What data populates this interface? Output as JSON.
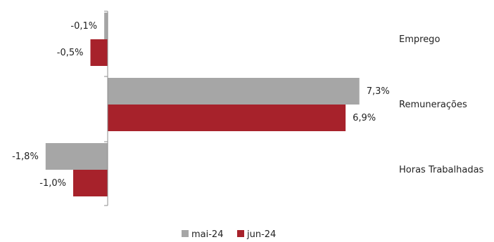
{
  "chart_data": {
    "type": "bar",
    "orientation": "horizontal",
    "categories": [
      "Emprego",
      "Remunerações",
      "Horas Trabalhadas"
    ],
    "series": [
      {
        "name": "mai-24",
        "color": "#a6a6a6",
        "values": [
          -0.1,
          7.3,
          -1.8
        ],
        "labels": [
          "-0,1%",
          "7,3%",
          "-1,8%"
        ]
      },
      {
        "name": "jun-24",
        "color": "#a7222b",
        "values": [
          -0.5,
          6.9,
          -1.0
        ],
        "labels": [
          "-0,5%",
          "6,9%",
          "-1,0%"
        ]
      }
    ],
    "value_unit": "%",
    "grid": false,
    "legend_position": "bottom"
  }
}
